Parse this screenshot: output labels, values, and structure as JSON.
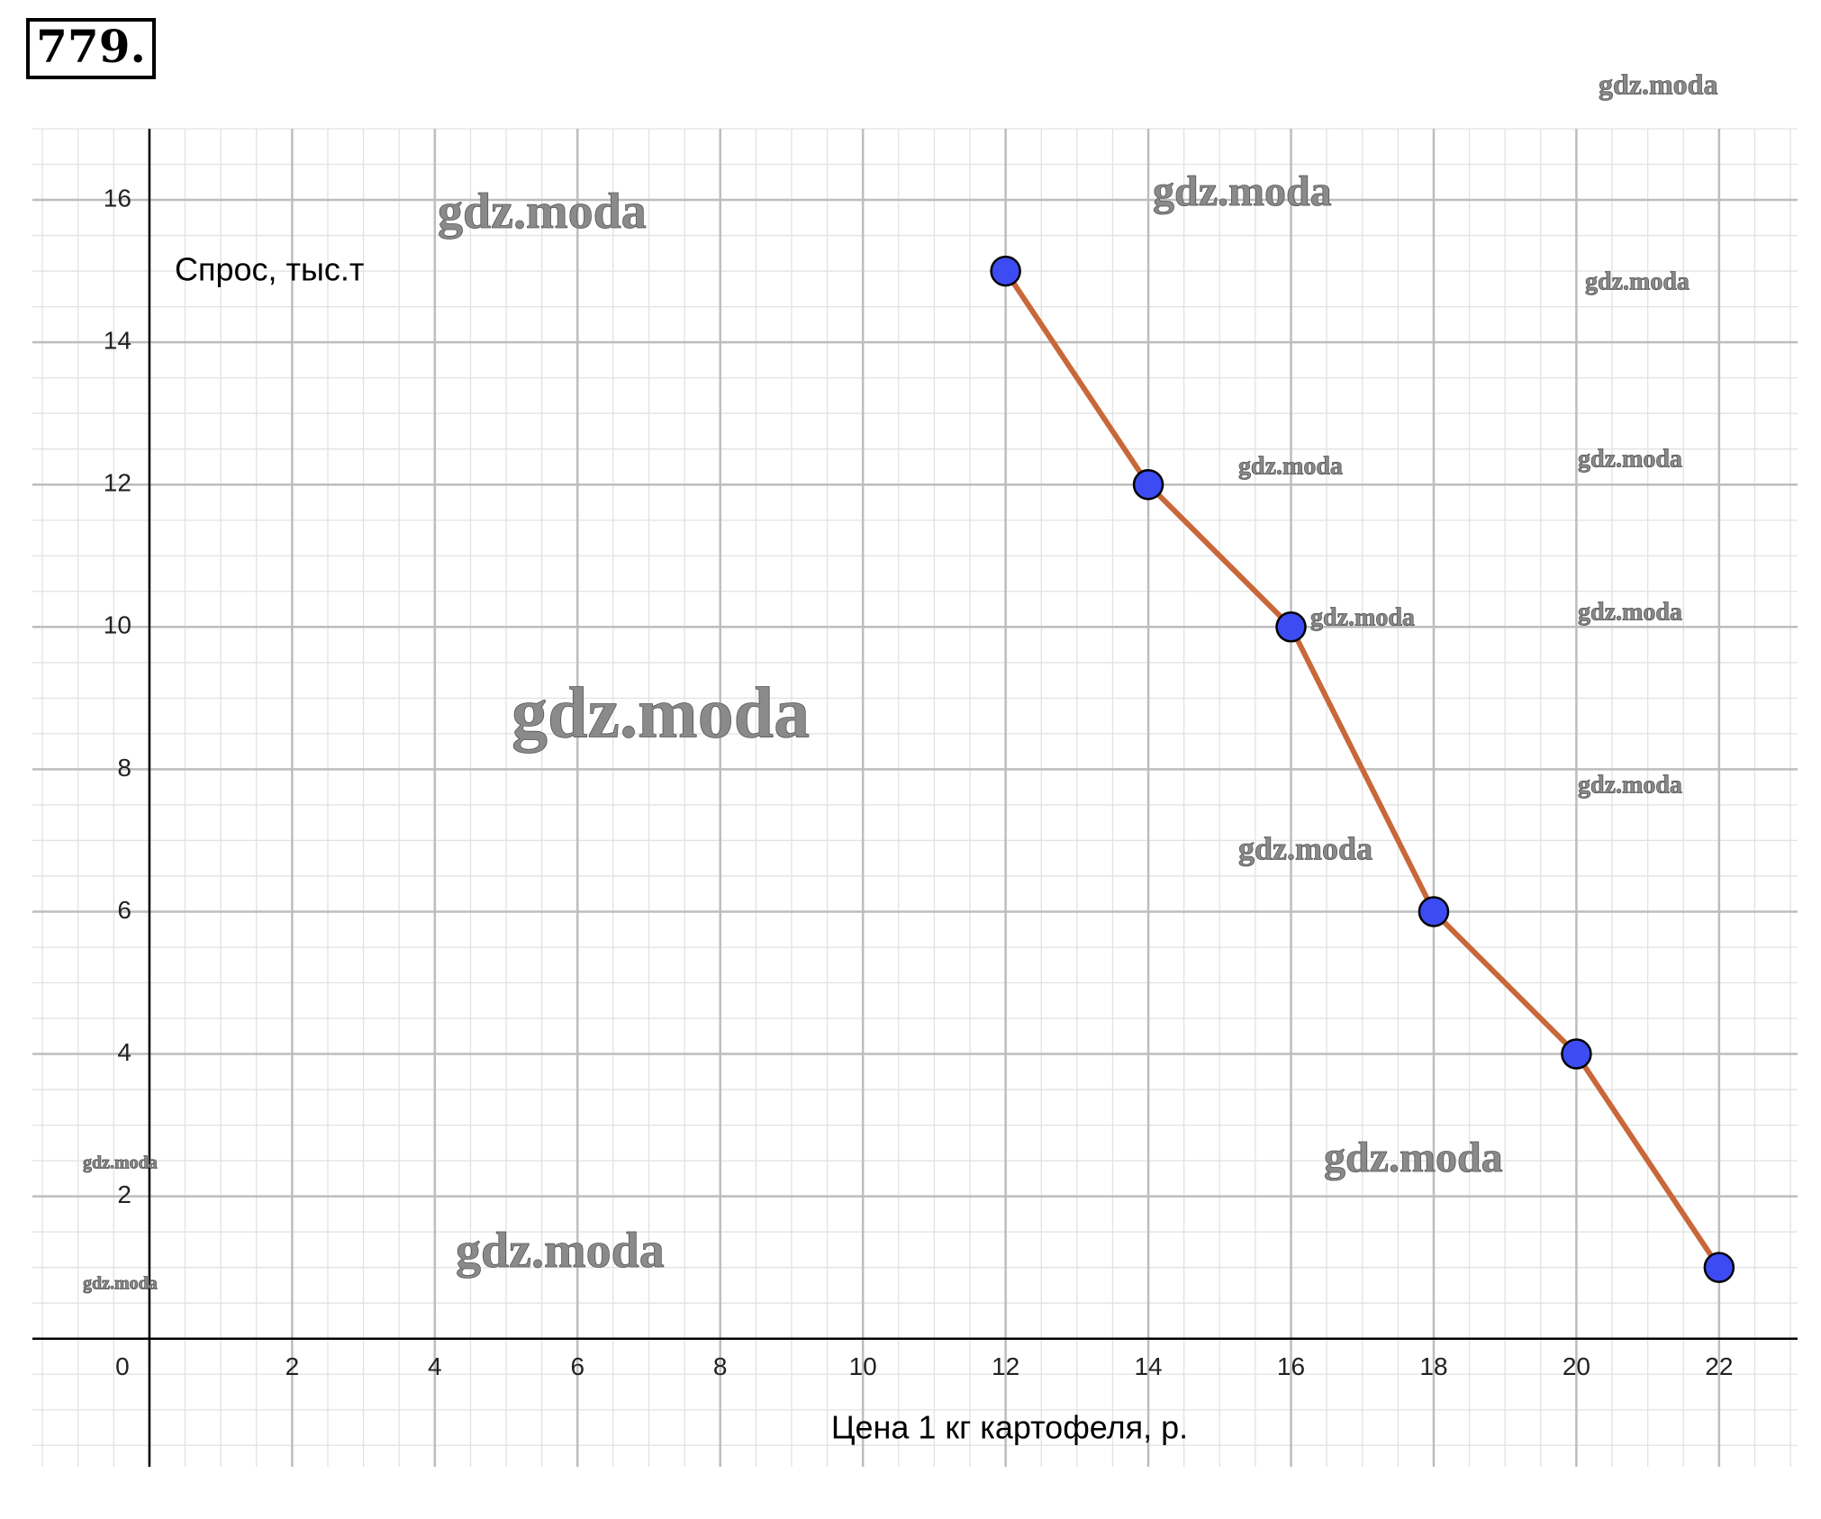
{
  "problem_number": "779.",
  "watermarks": [
    "gdz.moda",
    "gdz.moda",
    "gdz.moda",
    "gdz.moda",
    "gdz.moda",
    "gdz.moda",
    "gdz.moda",
    "gdz.moda",
    "gdz.moda",
    "gdz.moda",
    "gdz.moda",
    "gdz.moda",
    "gdz.moda",
    "gdz.moda",
    "gdz.moda"
  ],
  "chart_data": {
    "type": "line",
    "x_label": "Цена 1 кг картофеля, р.",
    "y_label": "Спрос, тыс.т",
    "x": [
      12,
      14,
      16,
      18,
      20,
      22
    ],
    "series": [
      {
        "name": "Спрос",
        "color": "#c8683a",
        "marker_color": "#3c4cf2",
        "values": [
          15,
          12,
          10,
          6,
          4,
          1
        ]
      }
    ],
    "xlim": [
      -1.64,
      23.1
    ],
    "ylim": [
      -1.8,
      17
    ],
    "xticks": [
      0,
      2,
      4,
      6,
      8,
      10,
      12,
      14,
      16,
      18,
      20,
      22
    ],
    "yticks": [
      2,
      4,
      6,
      8,
      10,
      12,
      14,
      16
    ],
    "grid": true
  }
}
